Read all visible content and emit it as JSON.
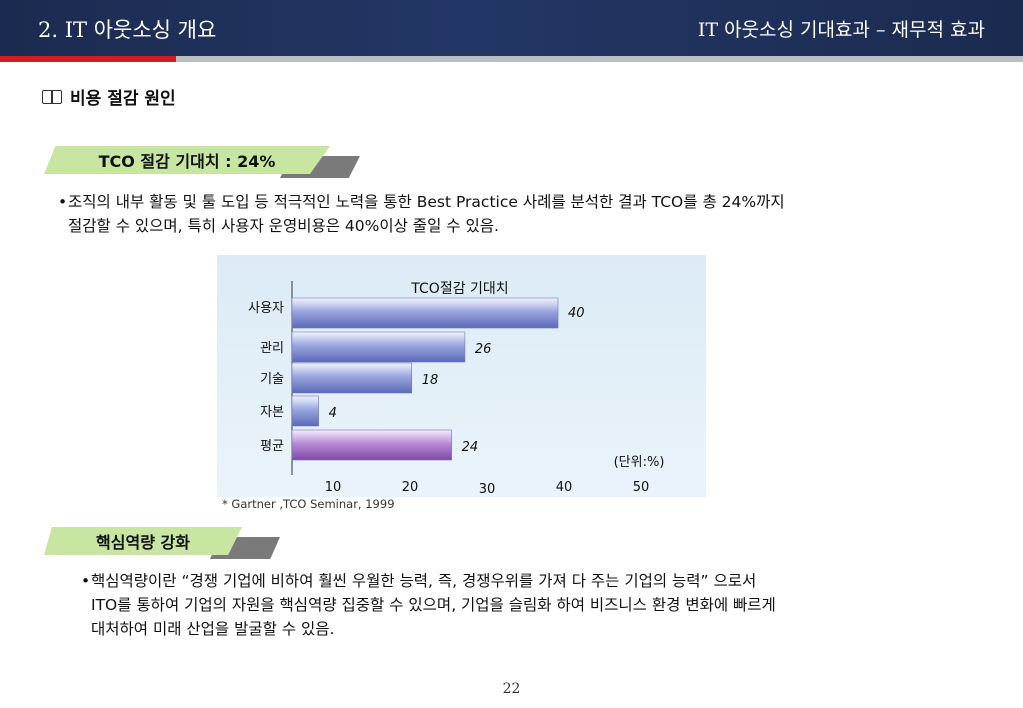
{
  "header": {
    "left_title": "2. IT 아웃소싱 개요",
    "right_title": "IT 아웃소싱 기대효과 – 재무적 효과"
  },
  "section": {
    "icon": "book-icon",
    "title": "비용 절감 원인"
  },
  "tab1": {
    "label": "TCO 절감 기대치 : 24%"
  },
  "bullet1": {
    "line1": "조직의 내부 활동 및 툴 도입 등 적극적인 노력을 통한 Best Practice 사례를 분석한 결과 TCO를 총 24%까지",
    "line2": "절감할 수 있으며, 특히 사용자 운영비용은 40%이상 줄일 수 있음."
  },
  "chart_data": {
    "type": "bar",
    "orientation": "horizontal",
    "title": "TCO절감 기대치",
    "categories": [
      "사용자",
      "관리",
      "기술",
      "자본",
      "평균"
    ],
    "values": [
      40,
      26,
      18,
      4,
      24
    ],
    "value_labels": [
      "40",
      "26",
      "18",
      "4",
      "24"
    ],
    "x_ticks": [
      "10",
      "20",
      "30",
      "40",
      "50"
    ],
    "unit_label": "(단위:%)",
    "colors": {
      "bar_main": "#9aa6de",
      "bar_highlight": "#b78bd6",
      "axis": "#333333"
    }
  },
  "source": "* Gartner ,TCO Seminar, 1999",
  "tab2": {
    "label": "핵심역량 강화"
  },
  "bullet2": {
    "line1": "핵심역량이란 “경쟁 기업에 비하여 훨씬 우월한 능력, 즉, 경쟁우위를 가져 다 주는 기업의 능력” 으로서",
    "line2": "ITO를 통하여 기업의 자원을 핵심역량 집중할 수 있으며, 기업을 슬림화 하여 비즈니스 환경 변화에 빠르게",
    "line3": "대처하여 미래 산업을 발굴할 수 있음."
  },
  "page_number": "22"
}
